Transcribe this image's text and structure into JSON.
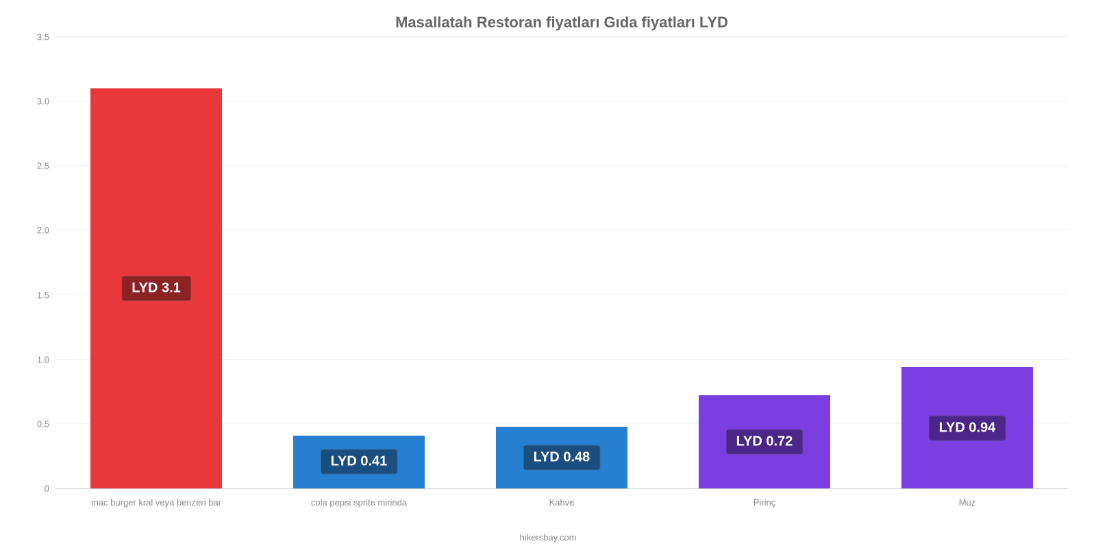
{
  "chart": {
    "type": "bar",
    "title": "Masallatah Restoran fiyatları Gıda fiyatları LYD",
    "title_fontsize": 22,
    "title_color": "#666666",
    "background_color": "#ffffff",
    "grid_color": "#f0f0f0",
    "axis_text_color": "#888888",
    "ylim": [
      0,
      3.5
    ],
    "ytick_step": 0.5,
    "yticks": [
      "0",
      "0.5",
      "1.0",
      "1.5",
      "2.0",
      "2.5",
      "3.0",
      "3.5"
    ],
    "categories": [
      "mac burger kral veya benzeri bar",
      "cola pepsi sprite mirinda",
      "Kahve",
      "Pirinç",
      "Muz"
    ],
    "values": [
      3.1,
      0.41,
      0.48,
      0.72,
      0.94
    ],
    "value_labels": [
      "LYD 3.1",
      "LYD 0.41",
      "LYD 0.48",
      "LYD 0.72",
      "LYD 0.94"
    ],
    "bar_colors": [
      "#e8383b",
      "#277fd2",
      "#277fd2",
      "#7a3de0",
      "#7a3de0"
    ],
    "label_box_colors": [
      "#8d2224",
      "#194e7f",
      "#194e7f",
      "#4b2588",
      "#4b2588"
    ],
    "label_text_color": "#ffffff",
    "label_fontsize": 20,
    "bar_width": 0.65,
    "source": "hikersbay.com"
  }
}
